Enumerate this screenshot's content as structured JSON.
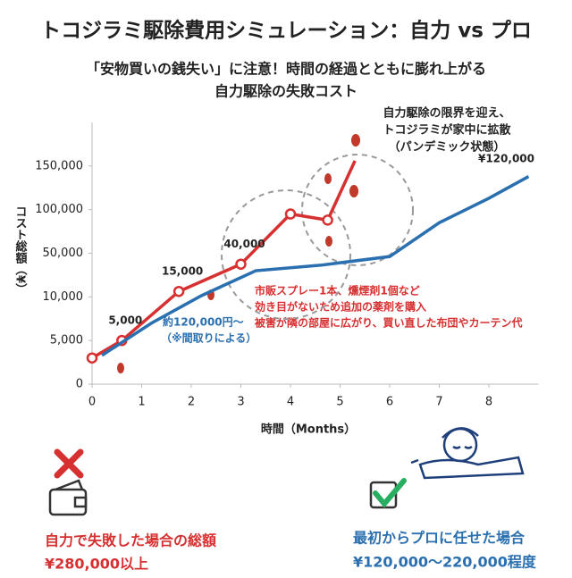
{
  "chart_data": {
    "type": "line",
    "title": "トコジラミ駆除費用シミュレーション：自力 vs プロ",
    "subtitle": [
      "「安物買いの銭失い」に注意！時間の経過とともに膨れ上がる",
      "自力駆除の失敗コスト"
    ],
    "x_label": "時間（Months）",
    "y_label": "コスト総額（¥）",
    "xlim": [
      0,
      9
    ],
    "xticks": [
      0,
      1,
      2,
      3,
      4,
      5,
      6,
      7,
      8
    ],
    "ylim": [
      0,
      200000
    ],
    "yticks": [
      0,
      {
        "value": 5000,
        "label": "5,000"
      },
      {
        "value": 10000,
        "label": "10,000"
      },
      {
        "value": 50000,
        "label": "50,000"
      },
      {
        "value": 100000,
        "label": "100,000"
      },
      {
        "value": 150000,
        "label": "150,000"
      }
    ],
    "series": [
      {
        "name": "自力",
        "color": "#d63031",
        "x": [
          0,
          0.6,
          1.75,
          3,
          4,
          4.75,
          5.3
        ],
        "values": [
          3000,
          5000,
          15000,
          40000,
          95000,
          88000,
          156000
        ],
        "value_labels": [
          null,
          "5,000",
          "15,000",
          "40,000",
          null,
          null,
          null
        ]
      },
      {
        "name": "プロ",
        "color": "#2a6fb0",
        "x": [
          0.2,
          1.2,
          2.2,
          3.3,
          4.6,
          6,
          7,
          8,
          8.8
        ],
        "values": [
          3300,
          7000,
          11000,
          34000,
          39000,
          47000,
          85000,
          113000,
          138000
        ]
      }
    ],
    "annotations": {
      "outbreak": [
        "自力駆除の限界を迎え、",
        "トコジラミが家中に拡散",
        "（パンデミック状態）"
      ],
      "pro_end": "¥120,000",
      "pro_note": [
        "約120,000円～",
        "（※間取りによる）"
      ],
      "diy_note": [
        "市販スプレー1本、燻煙剤1個など",
        "効き目がないため追加の薬剤を購入",
        "被害が隣の部屋に広がり、買い直した布団やカーテン代"
      ]
    },
    "summary": {
      "diy": {
        "label": "自力で失敗した場合の総額",
        "amount": "¥280,000以上"
      },
      "pro": {
        "label": "最初からプロに任せた場合",
        "amount": "¥120,000〜220,000程度"
      }
    }
  }
}
